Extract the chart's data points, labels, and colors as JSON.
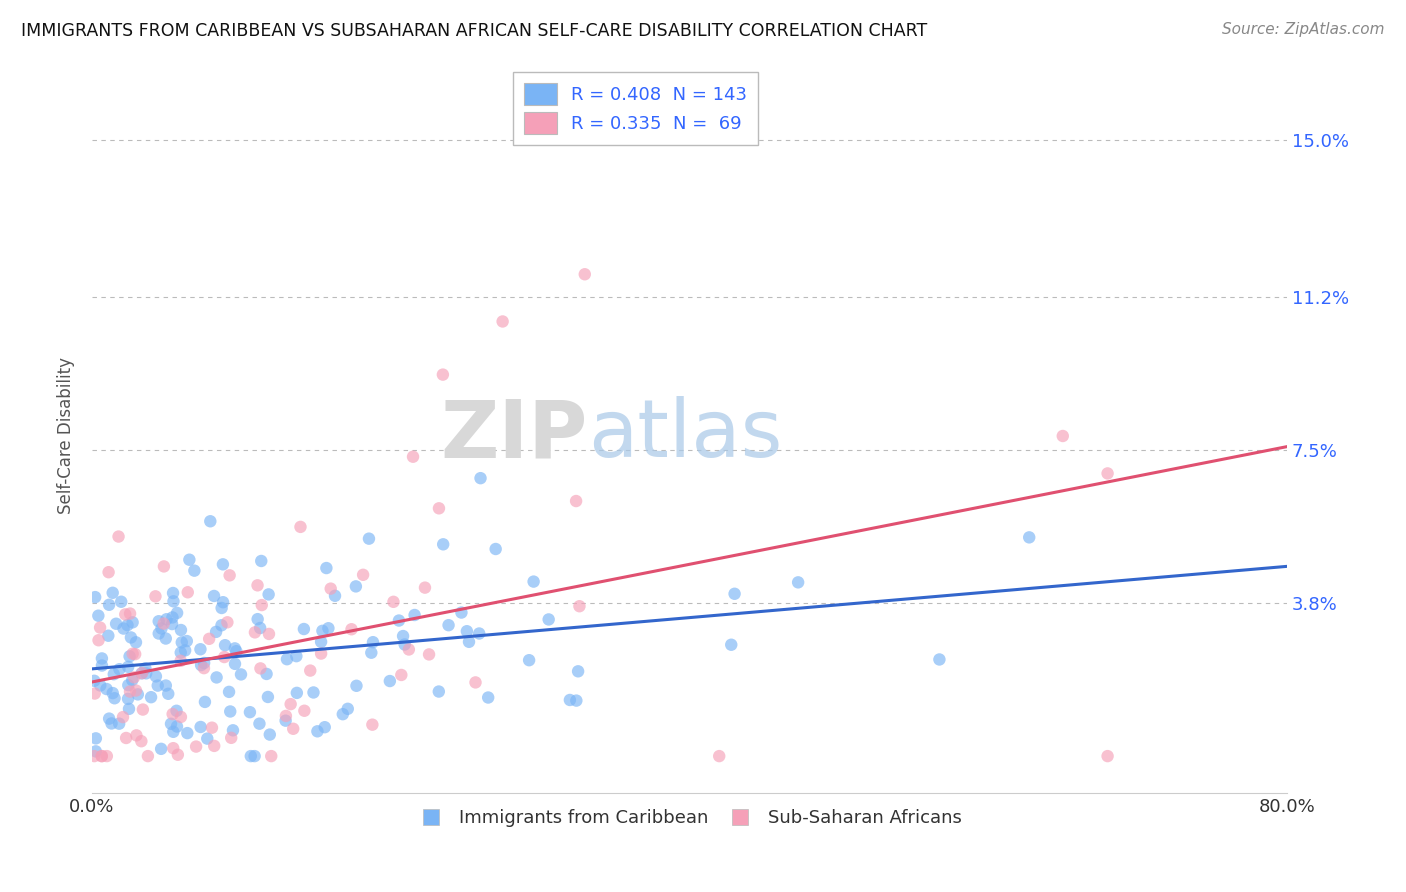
{
  "title": "IMMIGRANTS FROM CARIBBEAN VS SUBSAHARAN AFRICAN SELF-CARE DISABILITY CORRELATION CHART",
  "source": "Source: ZipAtlas.com",
  "ylabel": "Self-Care Disability",
  "yticks": [
    0.0,
    0.038,
    0.075,
    0.112,
    0.15
  ],
  "ytick_labels": [
    "",
    "3.8%",
    "7.5%",
    "11.2%",
    "15.0%"
  ],
  "watermark_zip": "ZIP",
  "watermark_atlas": "atlas",
  "caribbean_color": "#7ab4f5",
  "subsaharan_color": "#f5a0b8",
  "caribbean_line_color": "#3366cc",
  "subsaharan_line_color": "#e05070",
  "background_color": "#ffffff",
  "grid_color": "#bbbbbb",
  "xlim": [
    0.0,
    0.8
  ],
  "ylim": [
    -0.008,
    0.165
  ],
  "legend_blue_label": "R = 0.408  N = 143",
  "legend_pink_label": "R = 0.335  N =  69",
  "legend_text_color": "#3366ff",
  "legend_car_label": "Immigrants from Caribbean",
  "legend_sub_label": "Sub-Saharan Africans"
}
